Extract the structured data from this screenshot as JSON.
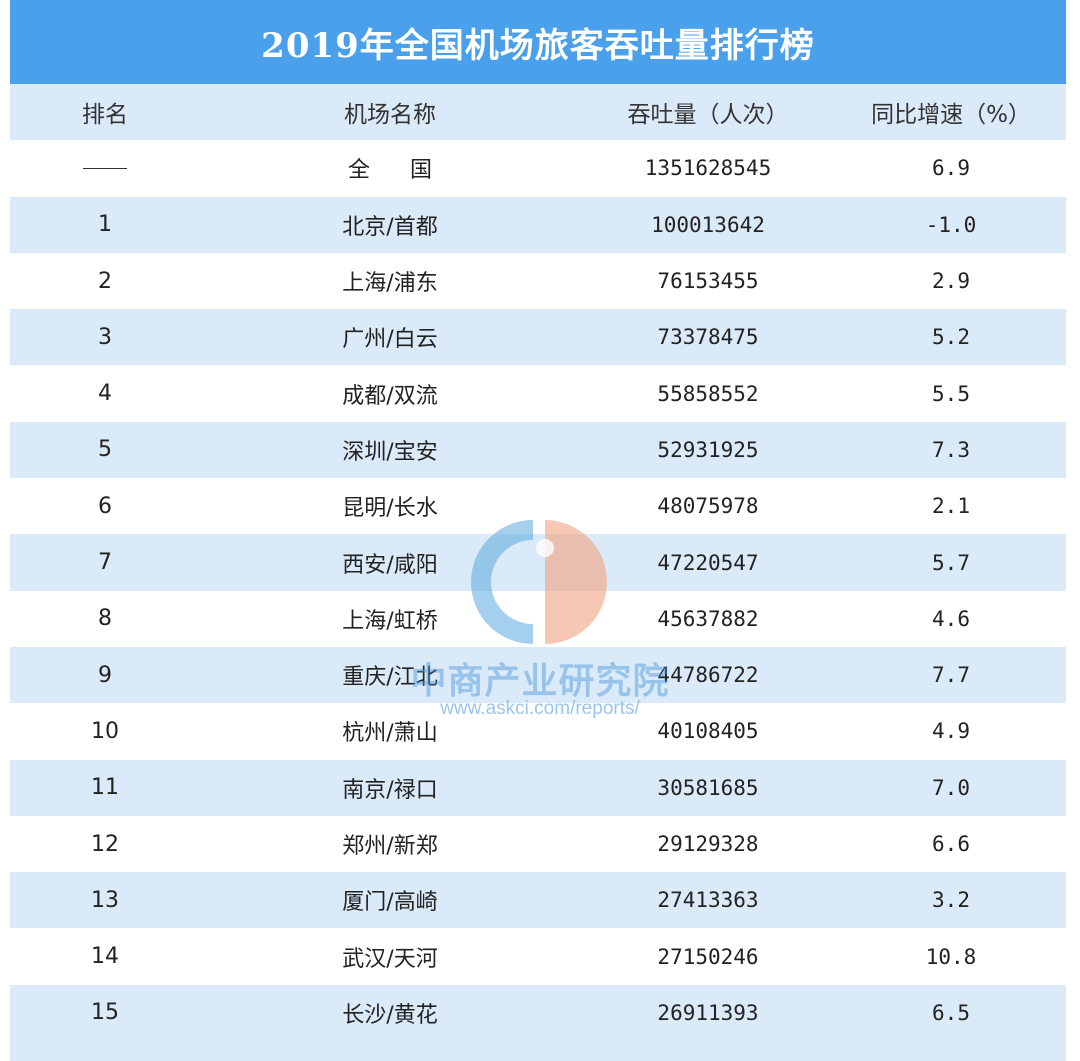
{
  "title": "2019年全国机场旅客吞吐量排行榜",
  "headers": [
    "排名",
    "机场名称",
    "吞吐量（人次）",
    "同比增速（%）"
  ],
  "national": {
    "rank": "——",
    "name": "全国",
    "throughput": "1351628545",
    "growth": "6.9"
  },
  "rows": [
    {
      "rank": "1",
      "name": "北京/首都",
      "throughput": "100013642",
      "growth": "-1.0"
    },
    {
      "rank": "2",
      "name": "上海/浦东",
      "throughput": "76153455",
      "growth": "2.9"
    },
    {
      "rank": "3",
      "name": "广州/白云",
      "throughput": "73378475",
      "growth": "5.2"
    },
    {
      "rank": "4",
      "name": "成都/双流",
      "throughput": "55858552",
      "growth": "5.5"
    },
    {
      "rank": "5",
      "name": "深圳/宝安",
      "throughput": "52931925",
      "growth": "7.3"
    },
    {
      "rank": "6",
      "name": "昆明/长水",
      "throughput": "48075978",
      "growth": "2.1"
    },
    {
      "rank": "7",
      "name": "西安/咸阳",
      "throughput": "47220547",
      "growth": "5.7"
    },
    {
      "rank": "8",
      "name": "上海/虹桥",
      "throughput": "45637882",
      "growth": "4.6"
    },
    {
      "rank": "9",
      "name": "重庆/江北",
      "throughput": "44786722",
      "growth": "7.7"
    },
    {
      "rank": "10",
      "name": "杭州/萧山",
      "throughput": "40108405",
      "growth": "4.9"
    },
    {
      "rank": "11",
      "name": "南京/禄口",
      "throughput": "30581685",
      "growth": "7.0"
    },
    {
      "rank": "12",
      "name": "郑州/新郑",
      "throughput": "29129328",
      "growth": "6.6"
    },
    {
      "rank": "13",
      "name": "厦门/高崎",
      "throughput": "27413363",
      "growth": "3.2"
    },
    {
      "rank": "14",
      "name": "武汉/天河",
      "throughput": "27150246",
      "growth": "10.8"
    },
    {
      "rank": "15",
      "name": "长沙/黄花",
      "throughput": "26911393",
      "growth": "6.5"
    }
  ],
  "watermark": {
    "name": "中商产业研究院",
    "url": "www.askci.com/reports/"
  },
  "colors": {
    "title_bg": "#4aa0ea",
    "stripe": "#dbeaf8",
    "logo_blue": "#5aa7de",
    "logo_orange": "#f0a27e"
  }
}
